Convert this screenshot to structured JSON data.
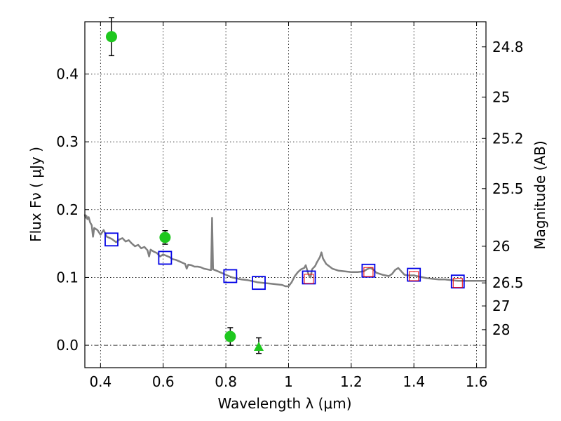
{
  "chart_data": {
    "type": "scatter",
    "xlabel": "Wavelength  λ (μm)",
    "ylabel": "Flux  Fν  ( μJy )",
    "y2label": "Magnitude (AB)",
    "xlim": [
      0.35,
      1.63
    ],
    "ylim": [
      -0.033,
      0.477
    ],
    "grid": true,
    "x_ticks": [
      0.4,
      0.6,
      0.8,
      1.0,
      1.2,
      1.4,
      1.6
    ],
    "x_tick_labels": [
      "0.4",
      "0.6",
      "0.8",
      "1",
      "1.2",
      "1.4",
      "1.6"
    ],
    "y_ticks": [
      0.0,
      0.1,
      0.2,
      0.3,
      0.4
    ],
    "y_tick_labels": [
      "0.0",
      "0.1",
      "0.2",
      "0.3",
      "0.4"
    ],
    "y2_ticks": [
      {
        "label": "24.8",
        "flux": 0.44
      },
      {
        "label": "25",
        "flux": 0.366
      },
      {
        "label": "25.2",
        "flux": 0.305
      },
      {
        "label": "25.5",
        "flux": 0.231
      },
      {
        "label": "26",
        "flux": 0.146
      },
      {
        "label": "26.5",
        "flux": 0.092
      },
      {
        "label": "27",
        "flux": 0.058
      },
      {
        "label": "28",
        "flux": 0.023
      }
    ],
    "colors": {
      "photometry": "#1ec71e",
      "model_box": "#0000e6",
      "observed_box": "#ee0000",
      "sed": "#808080",
      "errorbar": "#000000",
      "zero_line": "#000000"
    },
    "photometry": [
      {
        "x": 0.435,
        "y": 0.455,
        "yerr_low": 0.028,
        "yerr_high": 0.028,
        "marker": "circle"
      },
      {
        "x": 0.606,
        "y": 0.159,
        "yerr_low": 0.01,
        "yerr_high": 0.01,
        "marker": "circle"
      },
      {
        "x": 0.814,
        "y": 0.013,
        "yerr_low": 0.013,
        "yerr_high": 0.013,
        "marker": "circle"
      },
      {
        "x": 0.905,
        "y": -0.002,
        "yerr_low": 0.01,
        "yerr_high": 0.013,
        "marker": "triangle"
      }
    ],
    "model_points": [
      {
        "x": 0.435,
        "y": 0.156
      },
      {
        "x": 0.606,
        "y": 0.129
      },
      {
        "x": 0.814,
        "y": 0.102
      },
      {
        "x": 0.905,
        "y": 0.092
      },
      {
        "x": 1.065,
        "y": 0.1
      },
      {
        "x": 1.255,
        "y": 0.11
      },
      {
        "x": 1.4,
        "y": 0.104
      },
      {
        "x": 1.54,
        "y": 0.094
      }
    ],
    "observed_points": [
      {
        "x": 1.065,
        "y": 0.098
      },
      {
        "x": 1.255,
        "y": 0.108
      },
      {
        "x": 1.4,
        "y": 0.102
      },
      {
        "x": 1.54,
        "y": 0.092
      }
    ],
    "sed_curve": [
      [
        0.35,
        0.193
      ],
      [
        0.352,
        0.188
      ],
      [
        0.355,
        0.191
      ],
      [
        0.358,
        0.186
      ],
      [
        0.362,
        0.189
      ],
      [
        0.367,
        0.181
      ],
      [
        0.372,
        0.177
      ],
      [
        0.376,
        0.16
      ],
      [
        0.38,
        0.173
      ],
      [
        0.39,
        0.17
      ],
      [
        0.4,
        0.163
      ],
      [
        0.41,
        0.17
      ],
      [
        0.42,
        0.16
      ],
      [
        0.435,
        0.157
      ],
      [
        0.45,
        0.152
      ],
      [
        0.46,
        0.156
      ],
      [
        0.47,
        0.158
      ],
      [
        0.48,
        0.153
      ],
      [
        0.49,
        0.155
      ],
      [
        0.5,
        0.15
      ],
      [
        0.51,
        0.146
      ],
      [
        0.52,
        0.148
      ],
      [
        0.53,
        0.143
      ],
      [
        0.54,
        0.145
      ],
      [
        0.55,
        0.14
      ],
      [
        0.555,
        0.131
      ],
      [
        0.56,
        0.141
      ],
      [
        0.57,
        0.138
      ],
      [
        0.58,
        0.136
      ],
      [
        0.59,
        0.131
      ],
      [
        0.6,
        0.134
      ],
      [
        0.61,
        0.132
      ],
      [
        0.62,
        0.13
      ],
      [
        0.63,
        0.127
      ],
      [
        0.64,
        0.126
      ],
      [
        0.65,
        0.124
      ],
      [
        0.66,
        0.122
      ],
      [
        0.67,
        0.12
      ],
      [
        0.675,
        0.113
      ],
      [
        0.68,
        0.119
      ],
      [
        0.69,
        0.118
      ],
      [
        0.7,
        0.116
      ],
      [
        0.71,
        0.116
      ],
      [
        0.72,
        0.115
      ],
      [
        0.73,
        0.113
      ],
      [
        0.74,
        0.112
      ],
      [
        0.75,
        0.111
      ],
      [
        0.753,
        0.111
      ],
      [
        0.756,
        0.188
      ],
      [
        0.759,
        0.112
      ],
      [
        0.77,
        0.11
      ],
      [
        0.78,
        0.108
      ],
      [
        0.79,
        0.106
      ],
      [
        0.8,
        0.104
      ],
      [
        0.81,
        0.102
      ],
      [
        0.82,
        0.1
      ],
      [
        0.83,
        0.099
      ],
      [
        0.85,
        0.097
      ],
      [
        0.87,
        0.096
      ],
      [
        0.89,
        0.094
      ],
      [
        0.9,
        0.093
      ],
      [
        0.92,
        0.092
      ],
      [
        0.94,
        0.091
      ],
      [
        0.96,
        0.09
      ],
      [
        0.98,
        0.089
      ],
      [
        0.99,
        0.087
      ],
      [
        1.0,
        0.087
      ],
      [
        1.01,
        0.093
      ],
      [
        1.02,
        0.102
      ],
      [
        1.03,
        0.108
      ],
      [
        1.04,
        0.112
      ],
      [
        1.05,
        0.114
      ],
      [
        1.055,
        0.118
      ],
      [
        1.06,
        0.11
      ],
      [
        1.065,
        0.103
      ],
      [
        1.07,
        0.1
      ],
      [
        1.075,
        0.112
      ],
      [
        1.085,
        0.117
      ],
      [
        1.09,
        0.122
      ],
      [
        1.1,
        0.13
      ],
      [
        1.105,
        0.137
      ],
      [
        1.11,
        0.128
      ],
      [
        1.12,
        0.12
      ],
      [
        1.14,
        0.113
      ],
      [
        1.16,
        0.11
      ],
      [
        1.18,
        0.109
      ],
      [
        1.2,
        0.108
      ],
      [
        1.22,
        0.108
      ],
      [
        1.24,
        0.109
      ],
      [
        1.25,
        0.112
      ],
      [
        1.26,
        0.114
      ],
      [
        1.27,
        0.112
      ],
      [
        1.28,
        0.107
      ],
      [
        1.3,
        0.104
      ],
      [
        1.32,
        0.102
      ],
      [
        1.33,
        0.105
      ],
      [
        1.34,
        0.111
      ],
      [
        1.35,
        0.114
      ],
      [
        1.36,
        0.109
      ],
      [
        1.37,
        0.104
      ],
      [
        1.38,
        0.103
      ],
      [
        1.4,
        0.103
      ],
      [
        1.42,
        0.101
      ],
      [
        1.44,
        0.099
      ],
      [
        1.46,
        0.098
      ],
      [
        1.48,
        0.097
      ],
      [
        1.5,
        0.097
      ],
      [
        1.52,
        0.096
      ],
      [
        1.54,
        0.095
      ],
      [
        1.56,
        0.095
      ],
      [
        1.58,
        0.095
      ],
      [
        1.6,
        0.095
      ],
      [
        1.63,
        0.095
      ]
    ]
  }
}
